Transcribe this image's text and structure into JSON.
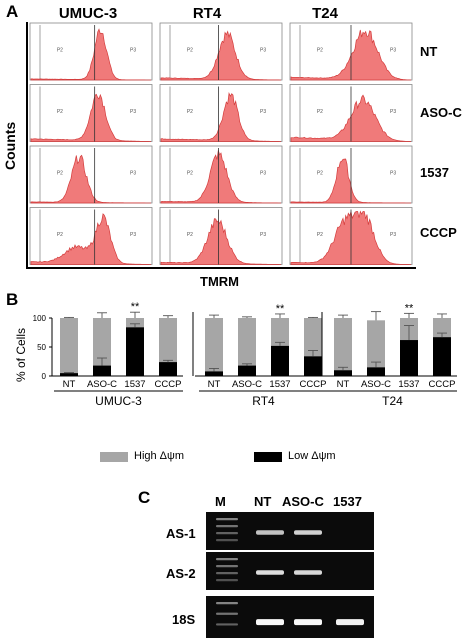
{
  "panelA": {
    "letter": "A",
    "columns": [
      "UMUC-3",
      "RT4",
      "T24"
    ],
    "rows": [
      "NT",
      "ASO-C",
      "1537",
      "CCCP"
    ],
    "y_label": "Counts",
    "x_label": "TMRM",
    "histograms": [
      [
        {
          "gate": 0.53,
          "peaks": [
            [
              0.58,
              0.05,
              0.95
            ]
          ],
          "low": 0.02
        },
        {
          "gate": 0.48,
          "peaks": [
            [
              0.55,
              0.07,
              0.85
            ]
          ],
          "low": 0.04
        },
        {
          "gate": 0.5,
          "peaks": [
            [
              0.62,
              0.1,
              0.92
            ]
          ],
          "low": 0.05
        }
      ],
      [
        {
          "gate": 0.53,
          "peaks": [
            [
              0.56,
              0.06,
              0.9
            ]
          ],
          "low": 0.05
        },
        {
          "gate": 0.48,
          "peaks": [
            [
              0.58,
              0.06,
              0.85
            ]
          ],
          "low": 0.05
        },
        {
          "gate": 0.5,
          "peaks": [
            [
              0.6,
              0.1,
              0.75
            ]
          ],
          "low": 0.08
        }
      ],
      [
        {
          "gate": 0.53,
          "peaks": [
            [
              0.4,
              0.06,
              0.85
            ]
          ],
          "low": 0.02
        },
        {
          "gate": 0.48,
          "peaks": [
            [
              0.48,
              0.07,
              0.9
            ]
          ],
          "low": 0.03
        },
        {
          "gate": 0.5,
          "peaks": [
            [
              0.43,
              0.05,
              0.85
            ]
          ],
          "low": 0.02
        }
      ],
      [
        {
          "gate": 0.53,
          "peaks": [
            [
              0.38,
              0.1,
              0.3
            ],
            [
              0.6,
              0.06,
              0.85
            ]
          ],
          "low": 0.05
        },
        {
          "gate": 0.48,
          "peaks": [
            [
              0.47,
              0.08,
              0.8
            ]
          ],
          "low": 0.04
        },
        {
          "gate": 0.5,
          "peaks": [
            [
              0.45,
              0.09,
              0.75
            ],
            [
              0.62,
              0.08,
              0.8
            ]
          ],
          "low": 0.04
        }
      ]
    ]
  },
  "panelB": {
    "letter": "B",
    "chart_data": {
      "type": "bar",
      "stacked": true,
      "ylabel": "% of Cells",
      "ylim": [
        0,
        100
      ],
      "yticks": [
        "0",
        "50",
        "100"
      ],
      "groups": [
        "UMUC-3",
        "RT4",
        "T24"
      ],
      "categories": [
        "NT",
        "ASO-C",
        "1537",
        "CCCP"
      ],
      "series": [
        {
          "name": "Low Δψm",
          "color": "#000000",
          "values": [
            [
              5,
              18,
              84,
              24
            ],
            [
              8,
              18,
              52,
              34
            ],
            [
              10,
              15,
              62,
              67
            ]
          ],
          "errors": [
            [
              1,
              13,
              6,
              3
            ],
            [
              5,
              3,
              6,
              10
            ],
            [
              5,
              9,
              25,
              7
            ]
          ]
        },
        {
          "name": "High Δψm",
          "color": "#a6a6a6",
          "values": [
            [
              95,
              82,
              16,
              76
            ],
            [
              92,
              82,
              48,
              66
            ],
            [
              90,
              81,
              38,
              33
            ]
          ],
          "errors": [
            [
              1,
              9,
              10,
              4
            ],
            [
              5,
              2,
              7,
              1
            ],
            [
              5,
              15,
              8,
              7
            ]
          ]
        }
      ],
      "significance": [
        [
          "",
          "",
          "**",
          ""
        ],
        [
          "",
          "",
          "**",
          ""
        ],
        [
          "",
          "",
          "**",
          ""
        ]
      ],
      "legend": "bottom"
    }
  },
  "panelC": {
    "letter": "C",
    "lanes": [
      "M",
      "NT",
      "ASO-C",
      "1537"
    ],
    "rows": [
      "AS-1",
      "AS-2",
      "18S"
    ],
    "bands": [
      [
        0,
        0.55,
        0.65,
        0
      ],
      [
        0,
        0.75,
        0.7,
        0
      ],
      [
        0,
        0.95,
        0.95,
        0.9
      ]
    ]
  }
}
